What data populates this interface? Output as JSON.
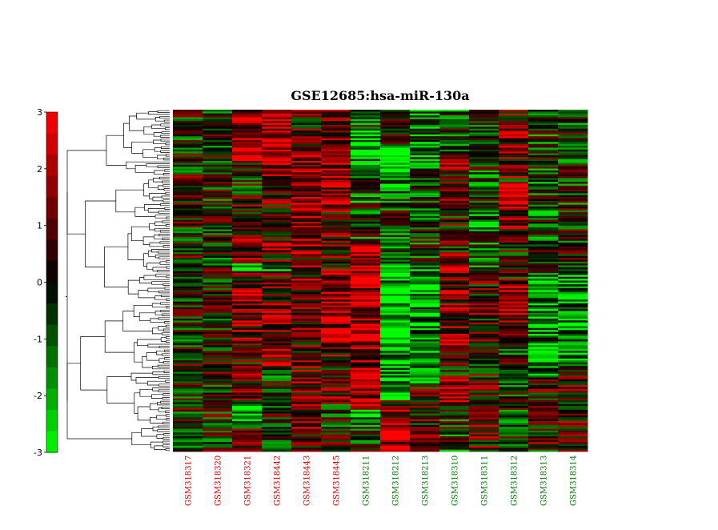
{
  "chart_data": {
    "type": "heatmap",
    "title": "GSE12685:hsa-miR-130a",
    "xlabel": "",
    "ylabel": "",
    "colorbar": {
      "ticks": [
        "3",
        "2",
        "1",
        "0",
        "-1",
        "-2",
        "-3"
      ],
      "vlim": [
        -3,
        3
      ],
      "colors": {
        "high": "#ff0000",
        "mid": "#000000",
        "low": "#00ff00"
      }
    },
    "columns": [
      {
        "name": "GSM318317",
        "group_color": "#cc0000"
      },
      {
        "name": "GSM318320",
        "group_color": "#cc0000"
      },
      {
        "name": "GSM318321",
        "group_color": "#cc0000"
      },
      {
        "name": "GSM318442",
        "group_color": "#cc0000"
      },
      {
        "name": "GSM318443",
        "group_color": "#cc0000"
      },
      {
        "name": "GSM318445",
        "group_color": "#cc0000"
      },
      {
        "name": "GSM318211",
        "group_color": "#007700"
      },
      {
        "name": "GSM318212",
        "group_color": "#007700"
      },
      {
        "name": "GSM318213",
        "group_color": "#007700"
      },
      {
        "name": "GSM318310",
        "group_color": "#007700"
      },
      {
        "name": "GSM318311",
        "group_color": "#007700"
      },
      {
        "name": "GSM318312",
        "group_color": "#007700"
      },
      {
        "name": "GSM318313",
        "group_color": "#007700"
      },
      {
        "name": "GSM318314",
        "group_color": "#007700"
      }
    ],
    "column_profiles": [
      [
        [
          0.0,
          1.0,
          0.0
        ]
      ],
      [
        [
          0.0,
          1.0,
          0.0
        ]
      ],
      [
        [
          0.0,
          0.15,
          2.2
        ],
        [
          0.25,
          0.45,
          0.8
        ],
        [
          0.45,
          0.47,
          -2.0
        ],
        [
          0.47,
          0.7,
          1.2
        ],
        [
          0.7,
          0.85,
          0.6
        ],
        [
          0.85,
          0.92,
          -2.2
        ],
        [
          0.92,
          1.0,
          0.3
        ]
      ],
      [
        [
          0.0,
          0.17,
          2.2
        ],
        [
          0.17,
          0.45,
          0.8
        ],
        [
          0.45,
          0.47,
          -2.0
        ],
        [
          0.47,
          0.75,
          1.0
        ],
        [
          0.75,
          0.9,
          -0.3
        ],
        [
          0.9,
          1.0,
          -1.0
        ]
      ],
      [
        [
          0.0,
          0.12,
          0.5
        ],
        [
          0.12,
          0.42,
          1.8
        ],
        [
          0.42,
          0.95,
          1.0
        ],
        [
          0.95,
          1.0,
          0.0
        ]
      ],
      [
        [
          0.0,
          0.1,
          0.6
        ],
        [
          0.1,
          0.28,
          1.8
        ],
        [
          0.28,
          0.48,
          0.8
        ],
        [
          0.48,
          0.7,
          2.2
        ],
        [
          0.7,
          0.85,
          0.8
        ],
        [
          0.85,
          1.0,
          0.0
        ]
      ],
      [
        [
          0.0,
          0.06,
          -0.5
        ],
        [
          0.06,
          0.16,
          -2.4
        ],
        [
          0.16,
          0.28,
          -1.0
        ],
        [
          0.28,
          0.38,
          -0.5
        ],
        [
          0.38,
          0.6,
          2.4
        ],
        [
          0.6,
          0.88,
          1.8
        ],
        [
          0.88,
          0.93,
          -2.0
        ],
        [
          0.93,
          1.0,
          -0.3
        ]
      ],
      [
        [
          0.0,
          0.1,
          0.2
        ],
        [
          0.1,
          0.2,
          -2.5
        ],
        [
          0.2,
          0.26,
          -1.5
        ],
        [
          0.26,
          0.34,
          -0.5
        ],
        [
          0.34,
          0.47,
          -1.0
        ],
        [
          0.47,
          0.85,
          -2.2
        ],
        [
          0.85,
          0.9,
          0.8
        ],
        [
          0.9,
          1.0,
          2.3
        ]
      ],
      [
        [
          0.0,
          0.25,
          -1.2
        ],
        [
          0.25,
          0.45,
          -0.3
        ],
        [
          0.45,
          0.8,
          -1.8
        ],
        [
          0.8,
          1.0,
          0.4
        ]
      ],
      [
        [
          0.0,
          0.12,
          -0.8
        ],
        [
          0.12,
          0.2,
          1.0
        ],
        [
          0.2,
          0.42,
          0.4
        ],
        [
          0.42,
          0.7,
          1.5
        ],
        [
          0.7,
          0.78,
          0.4
        ],
        [
          0.78,
          0.86,
          2.0
        ],
        [
          0.86,
          1.0,
          -0.4
        ]
      ],
      [
        [
          0.0,
          0.3,
          -0.5
        ],
        [
          0.3,
          0.5,
          -0.8
        ],
        [
          0.5,
          0.8,
          0.4
        ],
        [
          0.8,
          1.0,
          0.6
        ]
      ],
      [
        [
          0.0,
          0.08,
          0.8
        ],
        [
          0.08,
          0.2,
          1.2
        ],
        [
          0.2,
          0.21,
          0.0
        ],
        [
          0.21,
          0.28,
          2.3
        ],
        [
          0.28,
          0.35,
          1.5
        ],
        [
          0.35,
          0.5,
          0.4
        ],
        [
          0.5,
          0.63,
          1.6
        ],
        [
          0.63,
          0.68,
          0.2
        ],
        [
          0.68,
          1.0,
          -0.2
        ]
      ],
      [
        [
          0.0,
          0.2,
          -0.5
        ],
        [
          0.2,
          0.5,
          -0.7
        ],
        [
          0.5,
          0.78,
          -1.6
        ],
        [
          0.78,
          1.0,
          0.3
        ]
      ],
      [
        [
          0.0,
          0.3,
          -0.3
        ],
        [
          0.3,
          0.48,
          0.0
        ],
        [
          0.48,
          0.75,
          -1.8
        ],
        [
          0.75,
          1.0,
          0.5
        ]
      ]
    ]
  }
}
